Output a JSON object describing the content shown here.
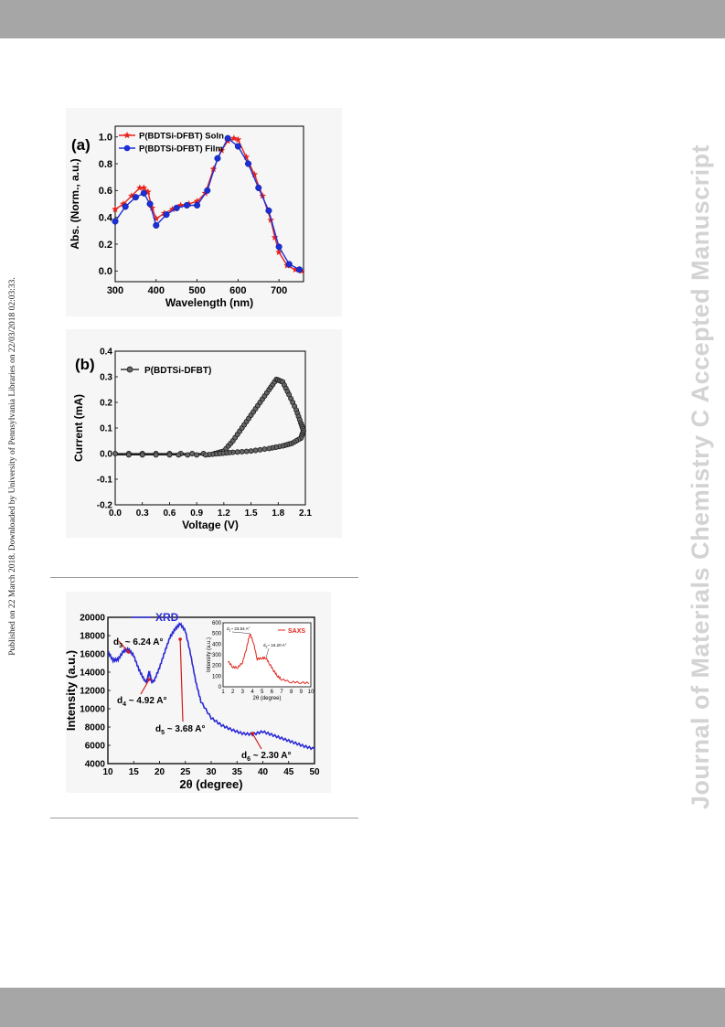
{
  "page": {
    "sidebar_left": "Published on 22 March 2018. Downloaded by University of Pennsylvania Libraries on 22/03/2018 02:03:33.",
    "sidebar_right": "Journal of Materials Chemistry C Accepted Manuscript",
    "colors": {
      "bars": "#a6a6a6",
      "watermark": "#d3d3d3",
      "rule": "#9a9a9a"
    }
  },
  "chart_data": [
    {
      "type": "line",
      "panel_label": "(a)",
      "xlabel": "Wavelength (nm)",
      "ylabel": "Abs. (Norm., a.u.)",
      "xlim": [
        300,
        760
      ],
      "ylim": [
        -0.08,
        1.08
      ],
      "xticks": [
        "300",
        "400",
        "500",
        "600",
        "700"
      ],
      "yticks": [
        "0.0",
        "0.2",
        "0.4",
        "0.6",
        "0.8",
        "1.0"
      ],
      "legend_position": "top-left",
      "series": [
        {
          "name": "P(BDTSi-DFBT) Soln",
          "color": "#e8221e",
          "marker": "star",
          "x": [
            300,
            320,
            340,
            360,
            370,
            380,
            390,
            400,
            420,
            440,
            460,
            480,
            500,
            520,
            540,
            560,
            575,
            590,
            600,
            620,
            640,
            660,
            680,
            690,
            700,
            720,
            740,
            755
          ],
          "y": [
            0.46,
            0.5,
            0.56,
            0.62,
            0.62,
            0.59,
            0.47,
            0.39,
            0.43,
            0.46,
            0.49,
            0.5,
            0.52,
            0.58,
            0.76,
            0.9,
            0.97,
            0.99,
            0.98,
            0.85,
            0.72,
            0.56,
            0.38,
            0.25,
            0.14,
            0.04,
            0.01,
            0.0
          ]
        },
        {
          "name": "P(BDTSi-DFBT) Film",
          "color": "#1b2fd6",
          "marker": "circle",
          "x": [
            300,
            325,
            350,
            370,
            385,
            400,
            425,
            450,
            475,
            500,
            525,
            550,
            575,
            600,
            625,
            650,
            675,
            700,
            725,
            750
          ],
          "y": [
            0.37,
            0.48,
            0.55,
            0.58,
            0.5,
            0.34,
            0.42,
            0.47,
            0.49,
            0.49,
            0.6,
            0.84,
            0.99,
            0.93,
            0.8,
            0.62,
            0.45,
            0.18,
            0.05,
            0.01
          ]
        }
      ]
    },
    {
      "type": "line",
      "panel_label": "(b)",
      "xlabel": "Voltage (V)",
      "ylabel": "Current (mA)",
      "xlim": [
        0.0,
        2.1
      ],
      "ylim": [
        -0.2,
        0.4
      ],
      "xticks": [
        "0.0",
        "0.3",
        "0.6",
        "0.9",
        "1.2",
        "1.5",
        "1.8",
        "2.1"
      ],
      "yticks": [
        "-0.2",
        "-0.1",
        "0.0",
        "0.1",
        "0.2",
        "0.3",
        "0.4"
      ],
      "legend_position": "top-left",
      "series": [
        {
          "name": "P(BDTSi-DFBT)",
          "color": "#111111",
          "marker": "circle",
          "x": [
            0.0,
            0.6,
            1.1,
            1.2,
            1.3,
            1.4,
            1.5,
            1.6,
            1.7,
            1.78,
            1.85,
            1.92,
            2.0,
            2.05,
            2.08,
            2.05,
            1.95,
            1.85,
            1.7,
            1.5,
            1.3,
            1.15,
            1.0,
            0.6,
            0.0
          ],
          "y": [
            0.0,
            0.0,
            0.0,
            0.01,
            0.05,
            0.1,
            0.15,
            0.2,
            0.25,
            0.29,
            0.28,
            0.23,
            0.17,
            0.12,
            0.09,
            0.06,
            0.04,
            0.03,
            0.02,
            0.01,
            0.005,
            0.0,
            -0.005,
            -0.005,
            -0.005
          ]
        }
      ]
    },
    {
      "type": "line",
      "xlabel": "2θ (degree)",
      "ylabel": "Intensity (a.u.)",
      "xlim": [
        10,
        50
      ],
      "ylim": [
        4000,
        20000
      ],
      "xticks": [
        "10",
        "15",
        "20",
        "25",
        "30",
        "35",
        "40",
        "45",
        "50"
      ],
      "yticks": [
        "4000",
        "6000",
        "8000",
        "10000",
        "12000",
        "14000",
        "16000",
        "18000",
        "20000"
      ],
      "legend_position": "top-left",
      "series": [
        {
          "name": "XRD",
          "color": "#2a2ad6",
          "x": [
            10,
            11,
            12,
            13,
            14,
            15,
            16,
            17,
            17.5,
            18,
            18.5,
            19,
            20,
            21,
            22,
            23,
            24,
            25,
            26,
            27,
            28,
            30,
            32,
            34,
            36,
            38,
            40,
            42,
            44,
            46,
            48,
            50
          ],
          "y": [
            16200,
            15300,
            15400,
            16300,
            16500,
            15800,
            14300,
            13200,
            12900,
            14100,
            12900,
            13100,
            14500,
            16200,
            17800,
            18700,
            19300,
            18500,
            16000,
            13000,
            10800,
            9000,
            8200,
            7700,
            7300,
            7200,
            7500,
            7100,
            6700,
            6300,
            5900,
            5600
          ]
        }
      ],
      "annotations": [
        {
          "text": "d",
          "sub": "3",
          "rest": " ~ 6.24 A°",
          "x": 14
        },
        {
          "text": "d",
          "sub": "4",
          "rest": " ~ 4.92 A°",
          "x": 18
        },
        {
          "text": "d",
          "sub": "5",
          "rest": " ~ 3.68 A°",
          "x": 24
        },
        {
          "text": "d",
          "sub": "6",
          "rest": " ~ 2.30 A°",
          "x": 38
        }
      ],
      "inset": {
        "type": "line",
        "xlabel": "2θ (degree)",
        "ylabel": "Intensity (a.u.)",
        "xlim": [
          1,
          10
        ],
        "ylim": [
          0,
          600
        ],
        "xticks": [
          "1",
          "2",
          "3",
          "4",
          "5",
          "6",
          "7",
          "8",
          "9",
          "10"
        ],
        "yticks": [
          "0",
          "100",
          "200",
          "300",
          "400",
          "500",
          "600"
        ],
        "legend_position": "top-right",
        "series": [
          {
            "name": "SAXS",
            "color": "#e2231a",
            "x": [
              1.5,
              2.0,
              2.5,
              3.0,
              3.4,
              3.75,
              4.1,
              4.5,
              5.0,
              5.4,
              5.8,
              6.2,
              6.6,
              7.0,
              8.0,
              9.0,
              10.0
            ],
            "y": [
              240,
              185,
              180,
              230,
              360,
              500,
              420,
              260,
              270,
              270,
              210,
              150,
              100,
              70,
              45,
              40,
              35
            ]
          }
        ],
        "annotations": [
          {
            "text": "d",
            "sub": "1",
            "rest": "~ 23.54 A°",
            "x": 3.75
          },
          {
            "text": "d",
            "sub": "2",
            "rest": "~ 16.20 A°",
            "x": 5.4
          }
        ]
      }
    }
  ]
}
